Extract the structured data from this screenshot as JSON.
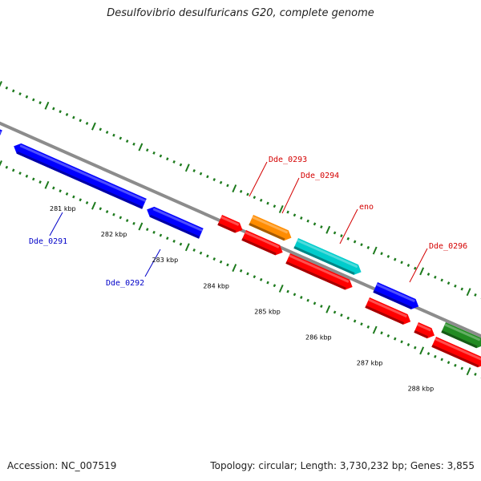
{
  "title": "Desulfovibrio desulfuricans G20, complete genome",
  "footer": {
    "accession": "Accession: NC_007519",
    "summary": "Topology: circular; Length: 3,730,232 bp; Genes: 3,855"
  },
  "colors": {
    "backbone": "#8c8c8c",
    "tick": "#1d7a1d",
    "label_forward": "#d40000",
    "label_reverse": "#0000c8"
  },
  "kbp_ticks": [
    "281 kbp",
    "282 kbp",
    "283 kbp",
    "284 kbp",
    "285 kbp",
    "286 kbp",
    "287 kbp",
    "288 kbp"
  ],
  "genes": [
    {
      "strand": "reverse",
      "color": "#0000ff"
    },
    {
      "strand": "reverse",
      "color": "#0000ff",
      "label": "Dde_0291"
    },
    {
      "strand": "reverse",
      "color": "#0000ff",
      "label": "Dde_0292"
    },
    {
      "strand": "forward",
      "color": "#ff0000",
      "label": "Dde_0293"
    },
    {
      "strand": "forward",
      "color": "#ff8c00",
      "label": "Dde_0294"
    },
    {
      "strand": "forward",
      "color": "#ff0000"
    },
    {
      "strand": "forward",
      "color": "#00cccc",
      "label": "eno"
    },
    {
      "strand": "forward",
      "color": "#ff0000"
    },
    {
      "strand": "forward",
      "color": "#0000ff",
      "label": "Dde_0296"
    },
    {
      "strand": "forward",
      "color": "#ff0000"
    },
    {
      "strand": "forward",
      "color": "#ff0000"
    },
    {
      "strand": "forward",
      "color": "#228b22"
    },
    {
      "strand": "forward",
      "color": "#ff0000"
    }
  ]
}
